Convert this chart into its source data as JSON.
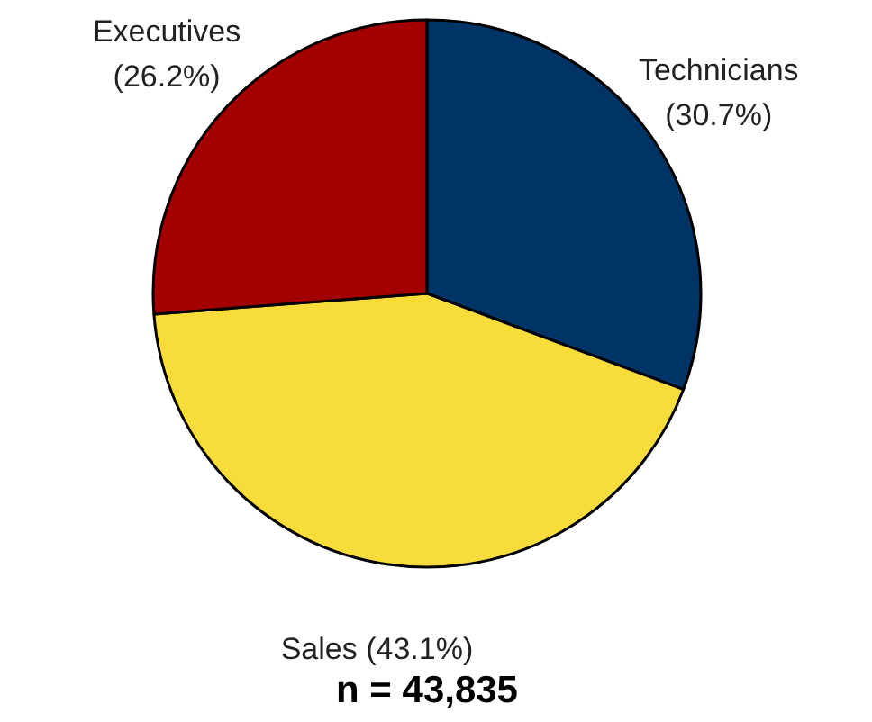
{
  "chart_data": {
    "type": "pie",
    "categories": [
      "Technicians",
      "Sales",
      "Executives"
    ],
    "values": [
      30.7,
      43.1,
      26.2
    ],
    "colors": [
      "#003366",
      "#f7dc3a",
      "#a30000"
    ],
    "value_labels": [
      "(30.7%)",
      "(43.1%)",
      "(26.2%)"
    ],
    "annotations": [
      "n = 43,835"
    ]
  }
}
